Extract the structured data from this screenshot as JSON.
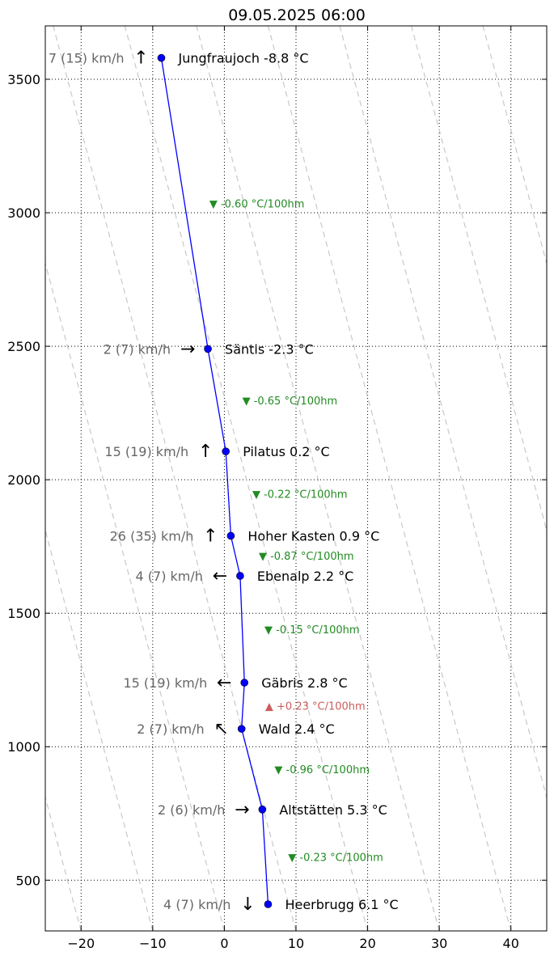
{
  "chart_data": {
    "type": "line",
    "title": "09.05.2025 06:00",
    "xlabel": "",
    "ylabel": "",
    "xlim": [
      -25,
      45
    ],
    "ylim": [
      310,
      3700
    ],
    "xticks": [
      -20,
      -10,
      0,
      10,
      20,
      30,
      40
    ],
    "xtick_labels": [
      "−20",
      "−10",
      "0",
      "10",
      "20",
      "30",
      "40"
    ],
    "yticks": [
      500,
      1000,
      1500,
      2000,
      2500,
      3000,
      3500
    ],
    "grid": true,
    "series_color": "#0000ff",
    "dry_adiabat_color": "#c8c8c8",
    "dry_adiabats_surface_temps": [
      -20,
      -10,
      0,
      10,
      20,
      30,
      40,
      50,
      60,
      70,
      80
    ],
    "dry_adiabat_reference_height": 310,
    "stations": [
      {
        "name": "Jungfraujoch",
        "label": "Jungfraujoch -8.8 °C",
        "temp": -8.8,
        "alt": 3580,
        "wind": "7 (15) km/h",
        "arrow": "↑"
      },
      {
        "name": "Säntis",
        "label": "Säntis -2.3 °C",
        "temp": -2.3,
        "alt": 2490,
        "wind": "2 (7) km/h",
        "arrow": "→"
      },
      {
        "name": "Pilatus",
        "label": "Pilatus 0.2 °C",
        "temp": 0.2,
        "alt": 2106,
        "wind": "15 (19) km/h",
        "arrow": "↑"
      },
      {
        "name": "Hoher Kasten",
        "label": "Hoher Kasten 0.9 °C",
        "temp": 0.9,
        "alt": 1790,
        "wind": "26 (35) km/h",
        "arrow": "↑"
      },
      {
        "name": "Ebenalp",
        "label": "Ebenalp 2.2 °C",
        "temp": 2.2,
        "alt": 1640,
        "wind": "4 (7) km/h",
        "arrow": "←"
      },
      {
        "name": "Gäbris",
        "label": "Gäbris 2.8 °C",
        "temp": 2.8,
        "alt": 1240,
        "wind": "15 (19) km/h",
        "arrow": "←"
      },
      {
        "name": "Wald",
        "label": "Wald 2.4 °C",
        "temp": 2.4,
        "alt": 1067,
        "wind": "2 (7) km/h",
        "arrow": "↖"
      },
      {
        "name": "Altstätten",
        "label": "Altstätten 5.3 °C",
        "temp": 5.3,
        "alt": 765,
        "wind": "2 (6) km/h",
        "arrow": "→"
      },
      {
        "name": "Heerbrugg",
        "label": "Heerbrugg 6.1 °C",
        "temp": 6.1,
        "alt": 410,
        "wind": "4 (7) km/h",
        "arrow": "↓"
      }
    ],
    "lapse_rates": [
      {
        "label": "▼ -0.60 °C/100hm",
        "temp": -2.1,
        "alt": 3035,
        "sign": "down"
      },
      {
        "label": "▼ -0.65 °C/100hm",
        "temp": 2.5,
        "alt": 2298,
        "sign": "down"
      },
      {
        "label": "▼ -0.22 °C/100hm",
        "temp": 3.9,
        "alt": 1948,
        "sign": "down"
      },
      {
        "label": "▼ -0.87 °C/100hm",
        "temp": 4.8,
        "alt": 1715,
        "sign": "down"
      },
      {
        "label": "▼ -0.15 °C/100hm",
        "temp": 5.6,
        "alt": 1440,
        "sign": "down"
      },
      {
        "label": "▲ +0.23 °C/100hm",
        "temp": 5.7,
        "alt": 1153,
        "sign": "up"
      },
      {
        "label": "▼ -0.96 °C/100hm",
        "temp": 7.0,
        "alt": 916,
        "sign": "down"
      },
      {
        "label": "▼ -0.23 °C/100hm",
        "temp": 8.9,
        "alt": 587,
        "sign": "down"
      }
    ],
    "colors": {
      "cooling": "#228b22",
      "warming": "#cd5c5c"
    }
  }
}
